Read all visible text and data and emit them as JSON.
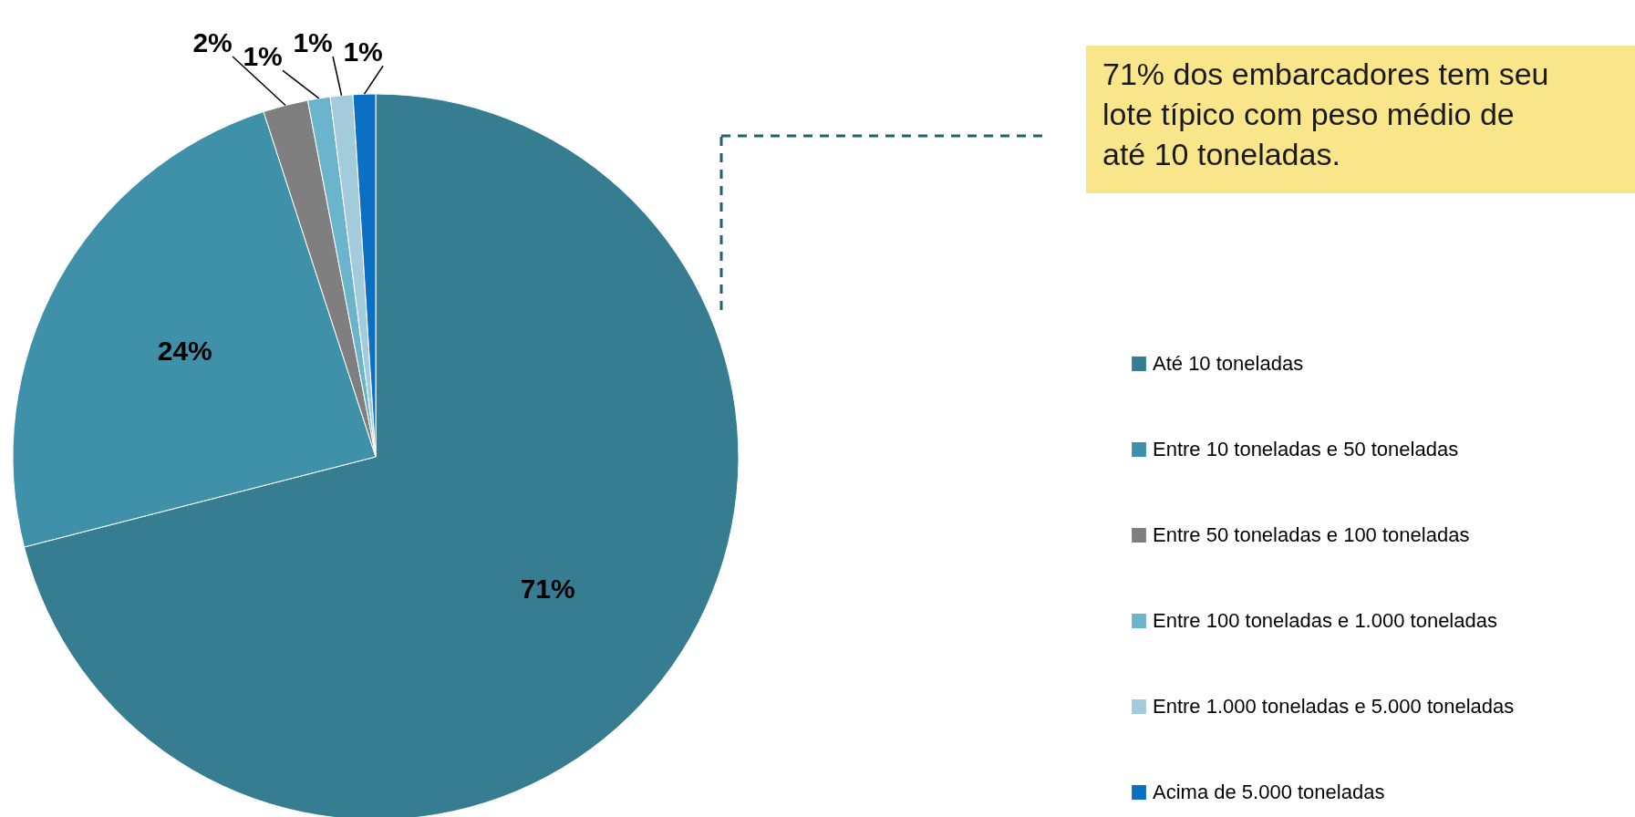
{
  "chart_data": {
    "type": "pie",
    "categories": [
      "Até 10 toneladas",
      "Entre 10 toneladas e 50 toneladas",
      "Entre 50 toneladas e 100 toneladas",
      "Entre 100 toneladas e 1.000 toneladas",
      "Entre 1.000 toneladas e 5.000 toneladas",
      "Acima de 5.000 toneladas"
    ],
    "values": [
      71,
      24,
      2,
      1,
      1,
      1
    ],
    "colors": [
      "#367d91",
      "#3f91a9",
      "#7f7f7f",
      "#6bb5cc",
      "#a3cbdc",
      "#0b70c2"
    ],
    "value_labels": [
      "71%",
      "24%",
      "2%",
      "1%",
      "1%",
      "1%"
    ],
    "legend": "right",
    "annotations": [
      "71% dos embarcadores tem seu lote típico com peso médio de até 10 toneladas."
    ]
  }
}
